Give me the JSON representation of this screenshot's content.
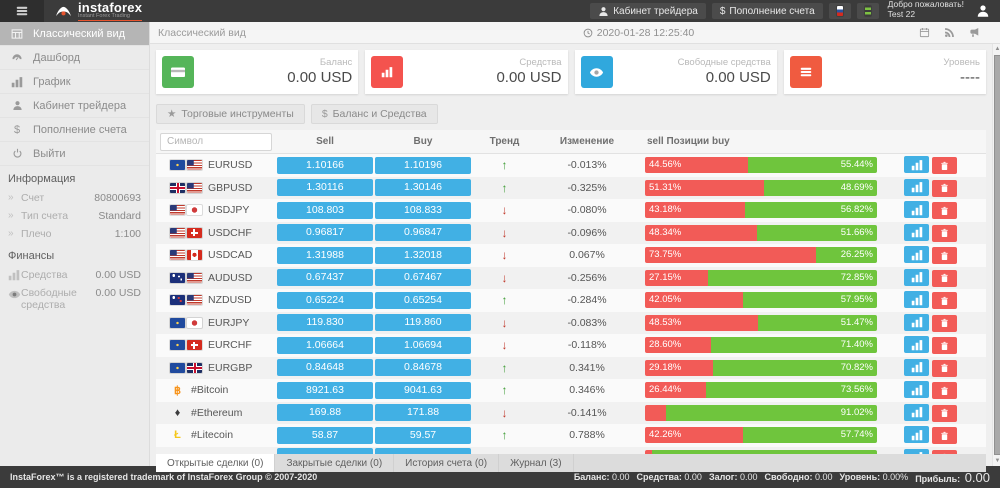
{
  "header": {
    "brand": "instaforex",
    "tagline": "Instant Forex Trading",
    "cabinet_button": "Кабинет трейдера",
    "deposit_button": "Пополнение счета",
    "welcome_line1": "Добро пожаловать!",
    "welcome_line2": "Test 22"
  },
  "sidebar": {
    "menu": [
      {
        "label": "Классический вид",
        "icon": "table-icon",
        "active": true
      },
      {
        "label": "Дашборд",
        "icon": "gauge-icon",
        "active": false
      },
      {
        "label": "График",
        "icon": "bar-chart-icon",
        "active": false
      },
      {
        "label": "Кабинет трейдера",
        "icon": "person-icon",
        "active": false
      },
      {
        "label": "Пополнение счета",
        "icon": "dollar-icon",
        "active": false
      },
      {
        "label": "Выйти",
        "icon": "power-icon",
        "active": false
      }
    ],
    "info_section": {
      "title": "Информация",
      "rows": [
        {
          "label": "Счет",
          "value": "80800693",
          "icon": "chevron-icon"
        },
        {
          "label": "Тип счета",
          "value": "Standard",
          "icon": "chevron-icon"
        },
        {
          "label": "Плечо",
          "value": "1:100",
          "icon": "chevron-icon"
        }
      ]
    },
    "finance_section": {
      "title": "Финансы",
      "rows": [
        {
          "label": "Средства",
          "value": "0.00 USD",
          "icon": "bar-chart-icon"
        },
        {
          "label": "Свободные средства",
          "value": "0.00 USD",
          "icon": "eye-icon"
        }
      ]
    }
  },
  "topbar": {
    "title": "Классический вид",
    "datetime": "2020-01-28 12:25:40"
  },
  "cards": [
    {
      "label": "Баланс",
      "value": "0.00 USD",
      "icon": "credit-card-icon",
      "color": "#55b559"
    },
    {
      "label": "Средства",
      "value": "0.00 USD",
      "icon": "bar-chart-icon",
      "color": "#f4534e"
    },
    {
      "label": "Свободные средства",
      "value": "0.00 USD",
      "icon": "eye-icon",
      "color": "#30a8dd"
    },
    {
      "label": "Уровень",
      "value": "----",
      "icon": "list-icon",
      "color": "#f05b40"
    }
  ],
  "toolbar": {
    "instruments_button": "Торговые инструменты",
    "balance_button": "Баланс и Средства"
  },
  "table": {
    "search_placeholder": "Символ",
    "columns": {
      "sell": "Sell",
      "buy": "Buy",
      "trend": "Тренд",
      "change": "Изменение",
      "positions": "sell Позиции buy"
    },
    "rows": [
      {
        "symbol": "EURUSD",
        "icons": [
          "eu",
          "us"
        ],
        "sell": "1.10166",
        "buy": "1.10196",
        "trend": "up",
        "change": "-0.013%",
        "sell_pct_label": "44.56%",
        "buy_pct_label": "55.44%",
        "sell_pct": 44.56
      },
      {
        "symbol": "GBPUSD",
        "icons": [
          "uk",
          "us"
        ],
        "sell": "1.30116",
        "buy": "1.30146",
        "trend": "up",
        "change": "-0.325%",
        "sell_pct_label": "51.31%",
        "buy_pct_label": "48.69%",
        "sell_pct": 51.31
      },
      {
        "symbol": "USDJPY",
        "icons": [
          "us",
          "jp"
        ],
        "sell": "108.803",
        "buy": "108.833",
        "trend": "down",
        "change": "-0.080%",
        "sell_pct_label": "43.18%",
        "buy_pct_label": "56.82%",
        "sell_pct": 43.18
      },
      {
        "symbol": "USDCHF",
        "icons": [
          "us",
          "ch"
        ],
        "sell": "0.96817",
        "buy": "0.96847",
        "trend": "down",
        "change": "-0.096%",
        "sell_pct_label": "48.34%",
        "buy_pct_label": "51.66%",
        "sell_pct": 48.34
      },
      {
        "symbol": "USDCAD",
        "icons": [
          "us",
          "ca"
        ],
        "sell": "1.31988",
        "buy": "1.32018",
        "trend": "down",
        "change": "0.067%",
        "sell_pct_label": "73.75%",
        "buy_pct_label": "26.25%",
        "sell_pct": 73.75
      },
      {
        "symbol": "AUDUSD",
        "icons": [
          "au",
          "us"
        ],
        "sell": "0.67437",
        "buy": "0.67467",
        "trend": "down",
        "change": "-0.256%",
        "sell_pct_label": "27.15%",
        "buy_pct_label": "72.85%",
        "sell_pct": 27.15
      },
      {
        "symbol": "NZDUSD",
        "icons": [
          "nz",
          "us"
        ],
        "sell": "0.65224",
        "buy": "0.65254",
        "trend": "up",
        "change": "-0.284%",
        "sell_pct_label": "42.05%",
        "buy_pct_label": "57.95%",
        "sell_pct": 42.05
      },
      {
        "symbol": "EURJPY",
        "icons": [
          "eu",
          "jp"
        ],
        "sell": "119.830",
        "buy": "119.860",
        "trend": "down",
        "change": "-0.083%",
        "sell_pct_label": "48.53%",
        "buy_pct_label": "51.47%",
        "sell_pct": 48.53
      },
      {
        "symbol": "EURCHF",
        "icons": [
          "eu",
          "ch"
        ],
        "sell": "1.06664",
        "buy": "1.06694",
        "trend": "down",
        "change": "-0.118%",
        "sell_pct_label": "28.60%",
        "buy_pct_label": "71.40%",
        "sell_pct": 28.6
      },
      {
        "symbol": "EURGBP",
        "icons": [
          "eu",
          "uk"
        ],
        "sell": "0.84648",
        "buy": "0.84678",
        "trend": "up",
        "change": "0.341%",
        "sell_pct_label": "29.18%",
        "buy_pct_label": "70.82%",
        "sell_pct": 29.18
      },
      {
        "symbol": "#Bitcoin",
        "crypto": "btc",
        "sell": "8921.63",
        "buy": "9041.63",
        "trend": "up",
        "change": "0.346%",
        "sell_pct_label": "26.44%",
        "buy_pct_label": "73.56%",
        "sell_pct": 26.44
      },
      {
        "symbol": "#Ethereum",
        "crypto": "eth",
        "sell": "169.88",
        "buy": "171.88",
        "trend": "down",
        "change": "-0.141%",
        "sell_pct_label": "",
        "buy_pct_label": "91.02%",
        "sell_pct": 8.98
      },
      {
        "symbol": "#Litecoin",
        "crypto": "ltc",
        "sell": "58.87",
        "buy": "59.57",
        "trend": "up",
        "change": "0.788%",
        "sell_pct_label": "42.26%",
        "buy_pct_label": "57.74%",
        "sell_pct": 42.26
      },
      {
        "symbol": "",
        "icons": [],
        "sell": "",
        "buy": "",
        "trend": "",
        "change": "",
        "sell_pct_label": "",
        "buy_pct_label": "",
        "sell_pct": 3
      }
    ]
  },
  "bottom_tabs": [
    {
      "label": "Открытые сделки (0)",
      "active": true
    },
    {
      "label": "Закрытые сделки (0)",
      "active": false
    },
    {
      "label": "История счета (0)",
      "active": false
    },
    {
      "label": "Журнал (3)",
      "active": false
    }
  ],
  "footer": {
    "copyright": "InstaForex™ is a registered trademark of InstaForex Group © 2007-2020",
    "stats": [
      {
        "label": "Баланс:",
        "value": "0.00",
        "big": false
      },
      {
        "label": "Средства:",
        "value": "0.00",
        "big": false
      },
      {
        "label": "Залог:",
        "value": "0.00",
        "big": false
      },
      {
        "label": "Свободно:",
        "value": "0.00",
        "big": false
      },
      {
        "label": "Уровень:",
        "value": "0.00%",
        "big": false
      },
      {
        "label": "Прибыль:",
        "value": "0.00",
        "big": true
      }
    ]
  }
}
